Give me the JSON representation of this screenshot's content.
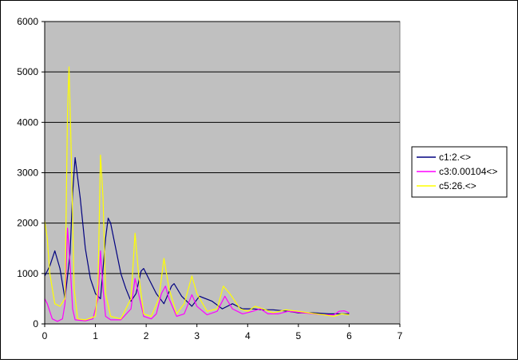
{
  "chart_data": {
    "type": "line",
    "xlim": [
      0,
      7
    ],
    "ylim": [
      0,
      6000
    ],
    "x_ticks": [
      0,
      1,
      2,
      3,
      4,
      5,
      6,
      7
    ],
    "y_ticks": [
      0,
      1000,
      2000,
      3000,
      4000,
      5000,
      6000
    ],
    "grid": "horizontal",
    "legend_position": "right",
    "plot_background": "#c0c0c0",
    "series": [
      {
        "name": "c1:2.<>",
        "color": "#000080",
        "points": [
          [
            0,
            950
          ],
          [
            0.1,
            1150
          ],
          [
            0.2,
            1450
          ],
          [
            0.3,
            1100
          ],
          [
            0.4,
            500
          ],
          [
            0.5,
            1400
          ],
          [
            0.55,
            2600
          ],
          [
            0.6,
            3300
          ],
          [
            0.7,
            2500
          ],
          [
            0.8,
            1500
          ],
          [
            0.9,
            900
          ],
          [
            1.0,
            600
          ],
          [
            1.1,
            500
          ],
          [
            1.2,
            1700
          ],
          [
            1.25,
            2100
          ],
          [
            1.3,
            2000
          ],
          [
            1.4,
            1500
          ],
          [
            1.5,
            1000
          ],
          [
            1.6,
            700
          ],
          [
            1.7,
            450
          ],
          [
            1.8,
            600
          ],
          [
            1.9,
            1050
          ],
          [
            1.95,
            1100
          ],
          [
            2.05,
            900
          ],
          [
            2.2,
            600
          ],
          [
            2.35,
            400
          ],
          [
            2.5,
            750
          ],
          [
            2.55,
            800
          ],
          [
            2.7,
            550
          ],
          [
            2.9,
            350
          ],
          [
            3.05,
            550
          ],
          [
            3.3,
            450
          ],
          [
            3.5,
            300
          ],
          [
            3.7,
            400
          ],
          [
            3.9,
            300
          ],
          [
            4.1,
            300
          ],
          [
            4.3,
            280
          ],
          [
            4.5,
            280
          ],
          [
            4.8,
            250
          ],
          [
            5.0,
            220
          ],
          [
            5.3,
            220
          ],
          [
            5.6,
            200
          ],
          [
            5.8,
            200
          ],
          [
            6.0,
            200
          ]
        ]
      },
      {
        "name": "c3:0.00104<>",
        "color": "#ff00ff",
        "points": [
          [
            0,
            500
          ],
          [
            0.05,
            400
          ],
          [
            0.15,
            100
          ],
          [
            0.25,
            50
          ],
          [
            0.35,
            100
          ],
          [
            0.4,
            400
          ],
          [
            0.45,
            1900
          ],
          [
            0.5,
            1200
          ],
          [
            0.55,
            300
          ],
          [
            0.6,
            80
          ],
          [
            0.8,
            60
          ],
          [
            0.95,
            100
          ],
          [
            1.05,
            500
          ],
          [
            1.1,
            1450
          ],
          [
            1.15,
            700
          ],
          [
            1.2,
            150
          ],
          [
            1.3,
            80
          ],
          [
            1.5,
            80
          ],
          [
            1.7,
            300
          ],
          [
            1.78,
            900
          ],
          [
            1.85,
            600
          ],
          [
            1.95,
            150
          ],
          [
            2.1,
            100
          ],
          [
            2.2,
            200
          ],
          [
            2.3,
            600
          ],
          [
            2.38,
            750
          ],
          [
            2.45,
            500
          ],
          [
            2.6,
            150
          ],
          [
            2.75,
            200
          ],
          [
            2.9,
            580
          ],
          [
            3.0,
            350
          ],
          [
            3.2,
            180
          ],
          [
            3.4,
            250
          ],
          [
            3.55,
            550
          ],
          [
            3.7,
            300
          ],
          [
            3.9,
            200
          ],
          [
            4.1,
            250
          ],
          [
            4.25,
            300
          ],
          [
            4.4,
            200
          ],
          [
            4.6,
            200
          ],
          [
            4.8,
            250
          ],
          [
            5.0,
            230
          ],
          [
            5.3,
            200
          ],
          [
            5.5,
            180
          ],
          [
            5.7,
            180
          ],
          [
            5.8,
            250
          ],
          [
            5.9,
            260
          ],
          [
            6.0,
            220
          ]
        ]
      },
      {
        "name": "c5:26.<>",
        "color": "#ffff00",
        "points": [
          [
            0,
            2050
          ],
          [
            0.05,
            1700
          ],
          [
            0.1,
            1000
          ],
          [
            0.2,
            400
          ],
          [
            0.3,
            350
          ],
          [
            0.4,
            500
          ],
          [
            0.45,
            4200
          ],
          [
            0.48,
            5100
          ],
          [
            0.52,
            3500
          ],
          [
            0.58,
            700
          ],
          [
            0.65,
            100
          ],
          [
            0.8,
            80
          ],
          [
            1.0,
            150
          ],
          [
            1.05,
            800
          ],
          [
            1.1,
            3350
          ],
          [
            1.15,
            2500
          ],
          [
            1.2,
            600
          ],
          [
            1.3,
            150
          ],
          [
            1.5,
            100
          ],
          [
            1.7,
            500
          ],
          [
            1.78,
            1800
          ],
          [
            1.85,
            1000
          ],
          [
            1.95,
            200
          ],
          [
            2.1,
            150
          ],
          [
            2.25,
            500
          ],
          [
            2.35,
            1300
          ],
          [
            2.45,
            700
          ],
          [
            2.6,
            200
          ],
          [
            2.75,
            400
          ],
          [
            2.9,
            950
          ],
          [
            3.0,
            600
          ],
          [
            3.2,
            250
          ],
          [
            3.4,
            300
          ],
          [
            3.52,
            750
          ],
          [
            3.65,
            600
          ],
          [
            3.85,
            300
          ],
          [
            4.0,
            250
          ],
          [
            4.15,
            350
          ],
          [
            4.3,
            300
          ],
          [
            4.5,
            220
          ],
          [
            4.75,
            280
          ],
          [
            5.0,
            250
          ],
          [
            5.2,
            220
          ],
          [
            5.5,
            180
          ],
          [
            5.7,
            150
          ],
          [
            5.85,
            200
          ],
          [
            6.0,
            180
          ]
        ]
      }
    ]
  }
}
